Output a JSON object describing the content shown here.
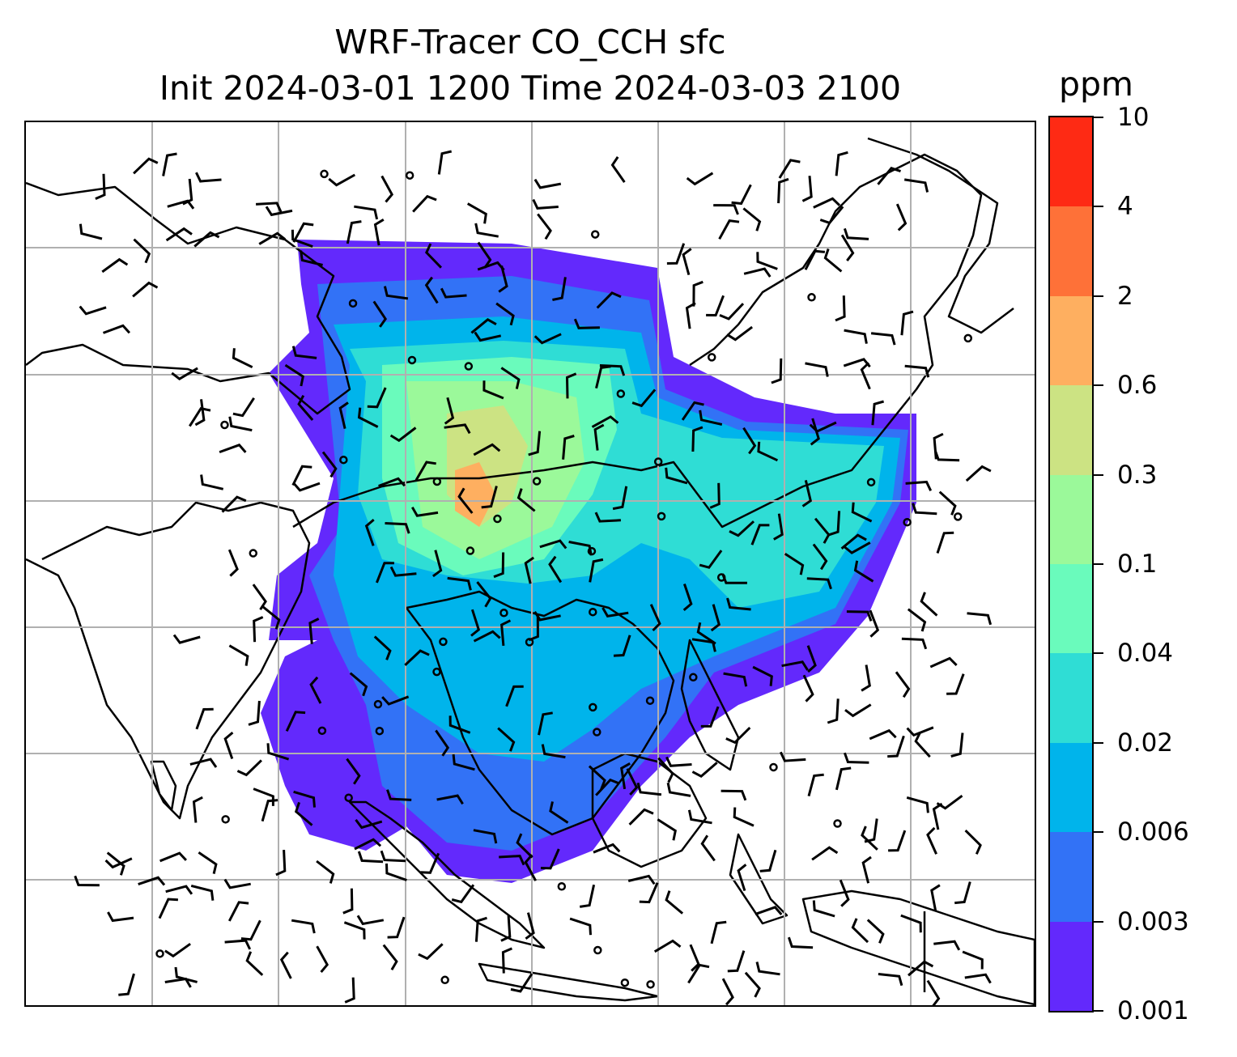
{
  "title": {
    "line1": "WRF-Tracer CO_CCH sfc",
    "line2": "Init 2024-03-01 1200 Time 2024-03-03 2100"
  },
  "colorbar": {
    "unit": "ppm",
    "levels": [
      "0.001",
      "0.003",
      "0.006",
      "0.02",
      "0.04",
      "0.1",
      "0.3",
      "0.6",
      "2",
      "4",
      "10"
    ],
    "colors": [
      "#6329FC",
      "#3272F6",
      "#00B4EB",
      "#2FDDD5",
      "#6AFBBC",
      "#9BF99A",
      "#CCE383",
      "#FEAF60",
      "#FE7138",
      "#FE2A14"
    ]
  },
  "map": {
    "gridlines": true,
    "grid_color": "#b0b0b0",
    "coastline_color": "#000000",
    "wind_barbs": true,
    "field": "CO_CCH tracer concentration (shaded)"
  }
}
